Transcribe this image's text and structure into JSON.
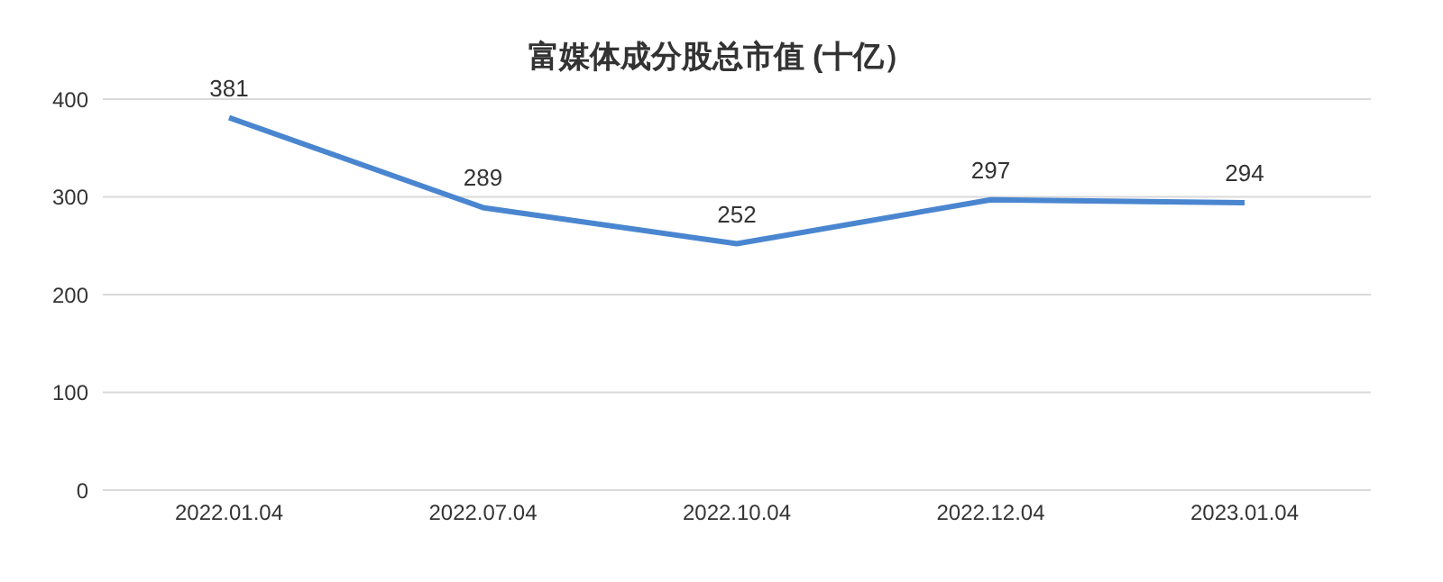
{
  "chart_data": {
    "type": "line",
    "title": "富媒体成分股总市值 (十亿）",
    "categories": [
      "2022.01.04",
      "2022.07.04",
      "2022.10.04",
      "2022.12.04",
      "2023.01.04"
    ],
    "series": [
      {
        "color": "#4a86d0",
        "values": [
          381,
          289,
          252,
          297,
          294
        ]
      }
    ],
    "ylim": [
      0,
      400
    ],
    "yticks": [
      0,
      100,
      200,
      300,
      400
    ],
    "grid": "y",
    "legend": false,
    "marker": "none",
    "line_style": "solid",
    "data_labels": true
  }
}
